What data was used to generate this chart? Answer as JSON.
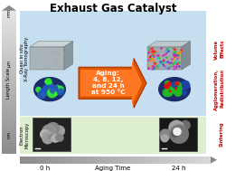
{
  "title": "Exhaust Gas Catalyst",
  "title_fontsize": 8.5,
  "title_fontweight": "bold",
  "bg_blue": "#c5dff0",
  "bg_green": "#deefd0",
  "bg_left_gray": "#b8b8b8",
  "arrow_gray": "#7a7a7a",
  "orange_arrow": "#e86010",
  "aging_text": "Aging:\n4, 8, 12,\nand 24 h\nat 950 °C",
  "label_0h": "0 h",
  "label_24h": "24 h",
  "label_aging": "Aging Time",
  "label_length_scale": "Length Scale",
  "label_mm": "mm",
  "label_um": "μm",
  "label_nm": "nm",
  "label_quasi": "Quasi in situ\nX-Ray Tomography",
  "label_electron": "Electron\nMicroscopy",
  "right_labels": [
    "Volume\nEffects",
    "Agglomeration,\nRedistribution",
    "Sintering"
  ],
  "right_label_color": "#cc0000",
  "figsize": [
    2.5,
    1.89
  ],
  "dpi": 100
}
